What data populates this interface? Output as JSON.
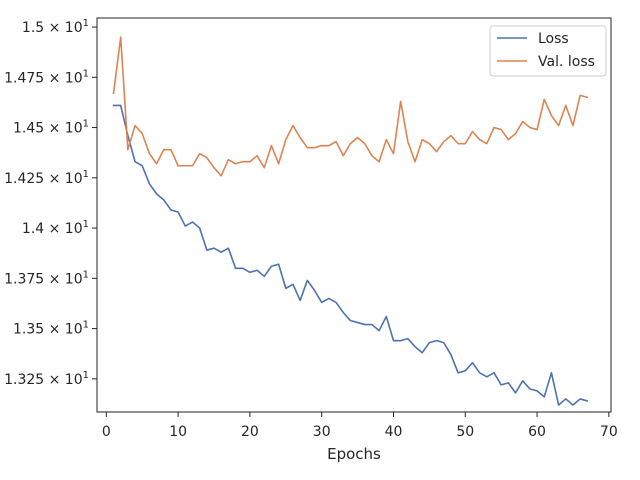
{
  "chart_data": {
    "type": "line",
    "title": "",
    "xlabel": "Epochs",
    "ylabel": "",
    "xlim": [
      -1.3,
      70.3
    ],
    "ylim": [
      13.085,
      15.045
    ],
    "grid": false,
    "legend_placement": "top-right",
    "x_ticks": [
      0,
      10,
      20,
      30,
      40,
      50,
      60,
      70
    ],
    "x_tick_labels": [
      "0",
      "10",
      "20",
      "30",
      "40",
      "50",
      "60",
      "70"
    ],
    "y_ticks": [
      13.25,
      13.5,
      13.75,
      14.0,
      14.25,
      14.5,
      14.75,
      15.0
    ],
    "y_tick_labels": [
      {
        "mant": "1.325",
        "base": "10",
        "exp": "1"
      },
      {
        "mant": "1.35",
        "base": "10",
        "exp": "1"
      },
      {
        "mant": "1.375",
        "base": "10",
        "exp": "1"
      },
      {
        "mant": "1.4",
        "base": "10",
        "exp": "1"
      },
      {
        "mant": "1.425",
        "base": "10",
        "exp": "1"
      },
      {
        "mant": "1.45",
        "base": "10",
        "exp": "1"
      },
      {
        "mant": "1.475",
        "base": "10",
        "exp": "1"
      },
      {
        "mant": "1.5",
        "base": "10",
        "exp": "1"
      }
    ],
    "x": [
      1,
      2,
      3,
      4,
      5,
      6,
      7,
      8,
      9,
      10,
      11,
      12,
      13,
      14,
      15,
      16,
      17,
      18,
      19,
      20,
      21,
      22,
      23,
      24,
      25,
      26,
      27,
      28,
      29,
      30,
      31,
      32,
      33,
      34,
      35,
      36,
      37,
      38,
      39,
      40,
      41,
      42,
      43,
      44,
      45,
      46,
      47,
      48,
      49,
      50,
      51,
      52,
      53,
      54,
      55,
      56,
      57,
      58,
      59,
      60,
      61,
      62,
      63,
      64,
      65,
      66,
      67
    ],
    "series": [
      {
        "name": "Loss",
        "color": "#4c72b0",
        "values": [
          14.61,
          14.61,
          14.46,
          14.33,
          14.31,
          14.22,
          14.17,
          14.14,
          14.09,
          14.08,
          14.01,
          14.03,
          14.0,
          13.89,
          13.9,
          13.88,
          13.9,
          13.8,
          13.8,
          13.78,
          13.79,
          13.76,
          13.81,
          13.82,
          13.7,
          13.72,
          13.64,
          13.74,
          13.69,
          13.63,
          13.65,
          13.63,
          13.58,
          13.54,
          13.53,
          13.52,
          13.52,
          13.49,
          13.56,
          13.44,
          13.44,
          13.45,
          13.41,
          13.38,
          13.43,
          13.44,
          13.43,
          13.37,
          13.28,
          13.29,
          13.33,
          13.28,
          13.26,
          13.28,
          13.22,
          13.23,
          13.18,
          13.24,
          13.2,
          13.19,
          13.16,
          13.28,
          13.12,
          13.15,
          13.12,
          13.15,
          13.14
        ]
      },
      {
        "name": "Val. loss",
        "color": "#dd8452",
        "values": [
          14.67,
          14.95,
          14.39,
          14.51,
          14.47,
          14.37,
          14.32,
          14.39,
          14.39,
          14.31,
          14.31,
          14.31,
          14.37,
          14.35,
          14.3,
          14.26,
          14.34,
          14.32,
          14.33,
          14.33,
          14.36,
          14.3,
          14.41,
          14.32,
          14.44,
          14.51,
          14.45,
          14.4,
          14.4,
          14.41,
          14.41,
          14.43,
          14.36,
          14.42,
          14.45,
          14.42,
          14.36,
          14.33,
          14.44,
          14.37,
          14.63,
          14.43,
          14.33,
          14.44,
          14.42,
          14.38,
          14.43,
          14.46,
          14.42,
          14.42,
          14.48,
          14.44,
          14.42,
          14.5,
          14.49,
          14.44,
          14.47,
          14.53,
          14.5,
          14.49,
          14.64,
          14.56,
          14.51,
          14.61,
          14.51,
          14.66,
          14.65
        ]
      }
    ]
  }
}
